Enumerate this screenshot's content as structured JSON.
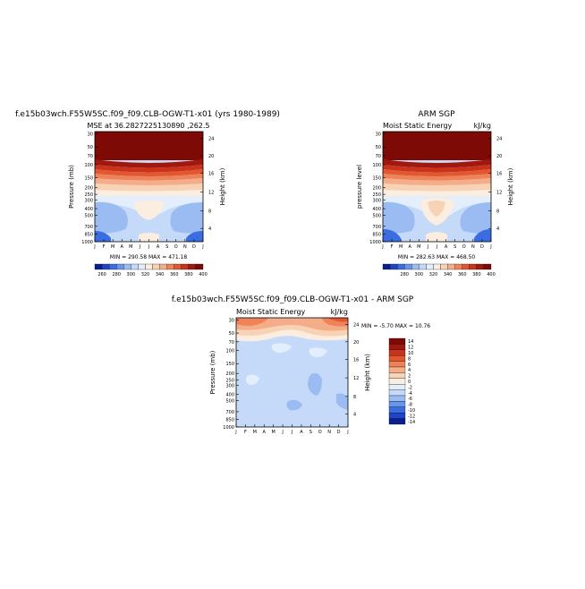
{
  "page": {
    "title": "f.e15b03wch.F55W5SC.f09_f09.CLB-OGW-T1-x01 (yrs 1980-1989)"
  },
  "chart_data": [
    {
      "type": "heatmap",
      "id": "model",
      "title": "MSE at 36.2827225130890 ,262.5",
      "subtitle_left": "",
      "subtitle_right": "",
      "ylabel": "Pressure (mb)",
      "ylabel_right": "Height (km)",
      "x_tick_labels": [
        "J",
        "F",
        "M",
        "A",
        "M",
        "J",
        "J",
        "A",
        "S",
        "O",
        "N",
        "D",
        "J"
      ],
      "y_tick_labels": [
        "30",
        "50",
        "70",
        "100",
        "150",
        "200",
        "250",
        "300",
        "400",
        "500",
        "700",
        "850",
        "1000"
      ],
      "y_right_tick_labels": [
        "24",
        "20",
        "16",
        "12",
        "8",
        "4"
      ],
      "stats": "MIN = 290.58  MAX = 471.18",
      "colorbar": {
        "orientation": "horizontal",
        "labels": [
          "260",
          "280",
          "300",
          "320",
          "340",
          "360",
          "380",
          "400"
        ],
        "colors": [
          "#0a1f8f",
          "#1f44c8",
          "#3a6ee0",
          "#6796ea",
          "#9bbcf2",
          "#c4daf8",
          "#e2eefb",
          "#fbeee0",
          "#f8d2b4",
          "#f4ad88",
          "#ee8259",
          "#e2572f",
          "#c9321b",
          "#a1180f",
          "#7d0a05"
        ]
      }
    },
    {
      "type": "heatmap",
      "id": "obs",
      "title": "ARM SGP",
      "subtitle_left": "Moist Static Energy",
      "subtitle_right": "kJ/kg",
      "ylabel": "pressure level",
      "ylabel_right": "Height (km)",
      "x_tick_labels": [
        "J",
        "F",
        "M",
        "A",
        "M",
        "J",
        "J",
        "A",
        "S",
        "O",
        "N",
        "D",
        "J"
      ],
      "y_tick_labels": [
        "30",
        "50",
        "70",
        "100",
        "150",
        "200",
        "250",
        "300",
        "400",
        "500",
        "700",
        "850",
        "1000"
      ],
      "y_right_tick_labels": [
        "24",
        "20",
        "16",
        "12",
        "8",
        "4"
      ],
      "stats": "MIN = 282.63  MAX = 468.50",
      "colorbar": {
        "orientation": "horizontal",
        "labels": [
          "280",
          "300",
          "320",
          "340",
          "360",
          "380",
          "400"
        ],
        "colors": [
          "#0a1f8f",
          "#1f44c8",
          "#3a6ee0",
          "#6796ea",
          "#9bbcf2",
          "#c4daf8",
          "#e2eefb",
          "#fbeee0",
          "#f8d2b4",
          "#f4ad88",
          "#ee8259",
          "#e2572f",
          "#c9321b",
          "#a1180f",
          "#7d0a05"
        ]
      }
    },
    {
      "type": "heatmap",
      "id": "diff",
      "title": "f.e15b03wch.F55W5SC.f09_f09.CLB-OGW-T1-x01 - ARM SGP",
      "subtitle_left": "Moist Static Energy",
      "subtitle_right": "kJ/kg",
      "ylabel": "Pressure (mb)",
      "ylabel_right": "Height (km)",
      "x_tick_labels": [
        "J",
        "F",
        "M",
        "A",
        "M",
        "J",
        "J",
        "A",
        "S",
        "O",
        "N",
        "D",
        "J"
      ],
      "y_tick_labels": [
        "30",
        "50",
        "70",
        "100",
        "150",
        "200",
        "250",
        "300",
        "400",
        "500",
        "700",
        "850",
        "1000"
      ],
      "y_right_tick_labels": [
        "24",
        "20",
        "16",
        "12",
        "8",
        "4"
      ],
      "stats": "MIN = -5.70  MAX = 10.76",
      "colorbar": {
        "orientation": "vertical",
        "labels": [
          "14",
          "12",
          "10",
          "8",
          "6",
          "4",
          "2",
          "0",
          "-2",
          "-4",
          "-6",
          "-8",
          "-10",
          "-12",
          "-14"
        ],
        "colors": [
          "#7d0a05",
          "#a1180f",
          "#c9321b",
          "#e2572f",
          "#ee8259",
          "#f4ad88",
          "#f8d2b4",
          "#fbeee0",
          "#e2eefb",
          "#c4daf8",
          "#9bbcf2",
          "#6796ea",
          "#3a6ee0",
          "#1f44c8",
          "#0a1f8f"
        ]
      }
    }
  ]
}
